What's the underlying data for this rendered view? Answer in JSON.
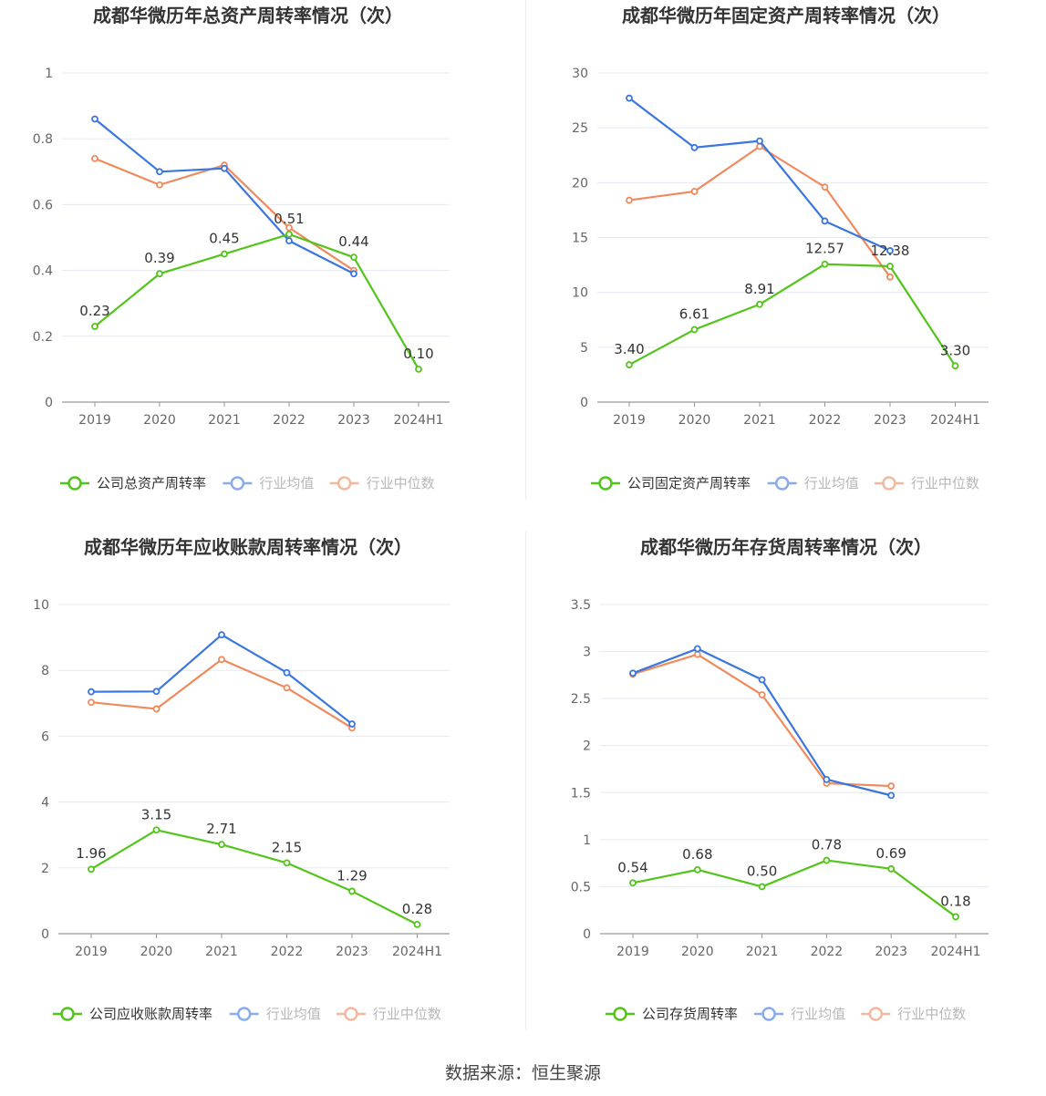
{
  "footer": {
    "source": "数据来源：恒生聚源"
  },
  "colors": {
    "company": "#52c41a",
    "average": "#3a76e0",
    "median": "#f08a5d",
    "grid": "#e6e8f0",
    "axis": "#999999",
    "tick_text": "#666666",
    "title_text": "#333333"
  },
  "chart_data": [
    {
      "type": "line",
      "title": "成都华微历年总资产周转率情况（次）",
      "categories": [
        "2019",
        "2020",
        "2021",
        "2022",
        "2023",
        "2024H1"
      ],
      "y_ticks": [
        "0",
        "0.2",
        "0.4",
        "0.6",
        "0.8",
        "1"
      ],
      "ylim": [
        0,
        1
      ],
      "grid": true,
      "legend_position": "bottom",
      "series": [
        {
          "name": "公司总资产周转率",
          "role": "company",
          "values": [
            0.23,
            0.39,
            0.45,
            0.51,
            0.44,
            0.1
          ],
          "labels": [
            "0.23",
            "0.39",
            "0.45",
            "0.51",
            "0.44",
            "0.10"
          ]
        },
        {
          "name": "行业均值",
          "role": "average",
          "values": [
            0.86,
            0.7,
            0.71,
            0.49,
            0.39,
            null
          ]
        },
        {
          "name": "行业中位数",
          "role": "median",
          "values": [
            0.74,
            0.66,
            0.72,
            0.53,
            0.4,
            null
          ]
        }
      ]
    },
    {
      "type": "line",
      "title": "成都华微历年固定资产周转率情况（次）",
      "categories": [
        "2019",
        "2020",
        "2021",
        "2022",
        "2023",
        "2024H1"
      ],
      "y_ticks": [
        "0",
        "5",
        "10",
        "15",
        "20",
        "25",
        "30"
      ],
      "ylim": [
        0,
        30
      ],
      "grid": true,
      "legend_position": "bottom",
      "series": [
        {
          "name": "公司固定资产周转率",
          "role": "company",
          "values": [
            3.4,
            6.61,
            8.91,
            12.57,
            12.38,
            3.3
          ],
          "labels": [
            "3.40",
            "6.61",
            "8.91",
            "12.57",
            "12.38",
            "3.30"
          ]
        },
        {
          "name": "行业均值",
          "role": "average",
          "values": [
            27.7,
            23.2,
            23.8,
            16.5,
            13.8,
            null
          ]
        },
        {
          "name": "行业中位数",
          "role": "median",
          "values": [
            18.4,
            19.2,
            23.3,
            19.6,
            11.4,
            null
          ]
        }
      ]
    },
    {
      "type": "line",
      "title": "成都华微历年应收账款周转率情况（次）",
      "categories": [
        "2019",
        "2020",
        "2021",
        "2022",
        "2023",
        "2024H1"
      ],
      "y_ticks": [
        "0",
        "2",
        "4",
        "6",
        "8",
        "10"
      ],
      "ylim": [
        0,
        10
      ],
      "grid": true,
      "legend_position": "bottom",
      "series": [
        {
          "name": "公司应收账款周转率",
          "role": "company",
          "values": [
            1.96,
            3.15,
            2.71,
            2.15,
            1.29,
            0.28
          ],
          "labels": [
            "1.96",
            "3.15",
            "2.71",
            "2.15",
            "1.29",
            "0.28"
          ]
        },
        {
          "name": "行业均值",
          "role": "average",
          "values": [
            7.35,
            7.36,
            9.08,
            7.93,
            6.37,
            null
          ]
        },
        {
          "name": "行业中位数",
          "role": "median",
          "values": [
            7.03,
            6.83,
            8.33,
            7.47,
            6.25,
            null
          ]
        }
      ]
    },
    {
      "type": "line",
      "title": "成都华微历年存货周转率情况（次）",
      "categories": [
        "2019",
        "2020",
        "2021",
        "2022",
        "2023",
        "2024H1"
      ],
      "y_ticks": [
        "0",
        "0.5",
        "1",
        "1.5",
        "2",
        "2.5",
        "3",
        "3.5"
      ],
      "ylim": [
        0,
        3.5
      ],
      "grid": true,
      "legend_position": "bottom",
      "series": [
        {
          "name": "公司存货周转率",
          "role": "company",
          "values": [
            0.54,
            0.68,
            0.5,
            0.78,
            0.69,
            0.18
          ],
          "labels": [
            "0.54",
            "0.68",
            "0.50",
            "0.78",
            "0.69",
            "0.18"
          ]
        },
        {
          "name": "行业均值",
          "role": "average",
          "values": [
            2.77,
            3.03,
            2.7,
            1.64,
            1.47,
            null
          ]
        },
        {
          "name": "行业中位数",
          "role": "median",
          "values": [
            2.76,
            2.97,
            2.54,
            1.6,
            1.57,
            null
          ]
        }
      ]
    }
  ]
}
